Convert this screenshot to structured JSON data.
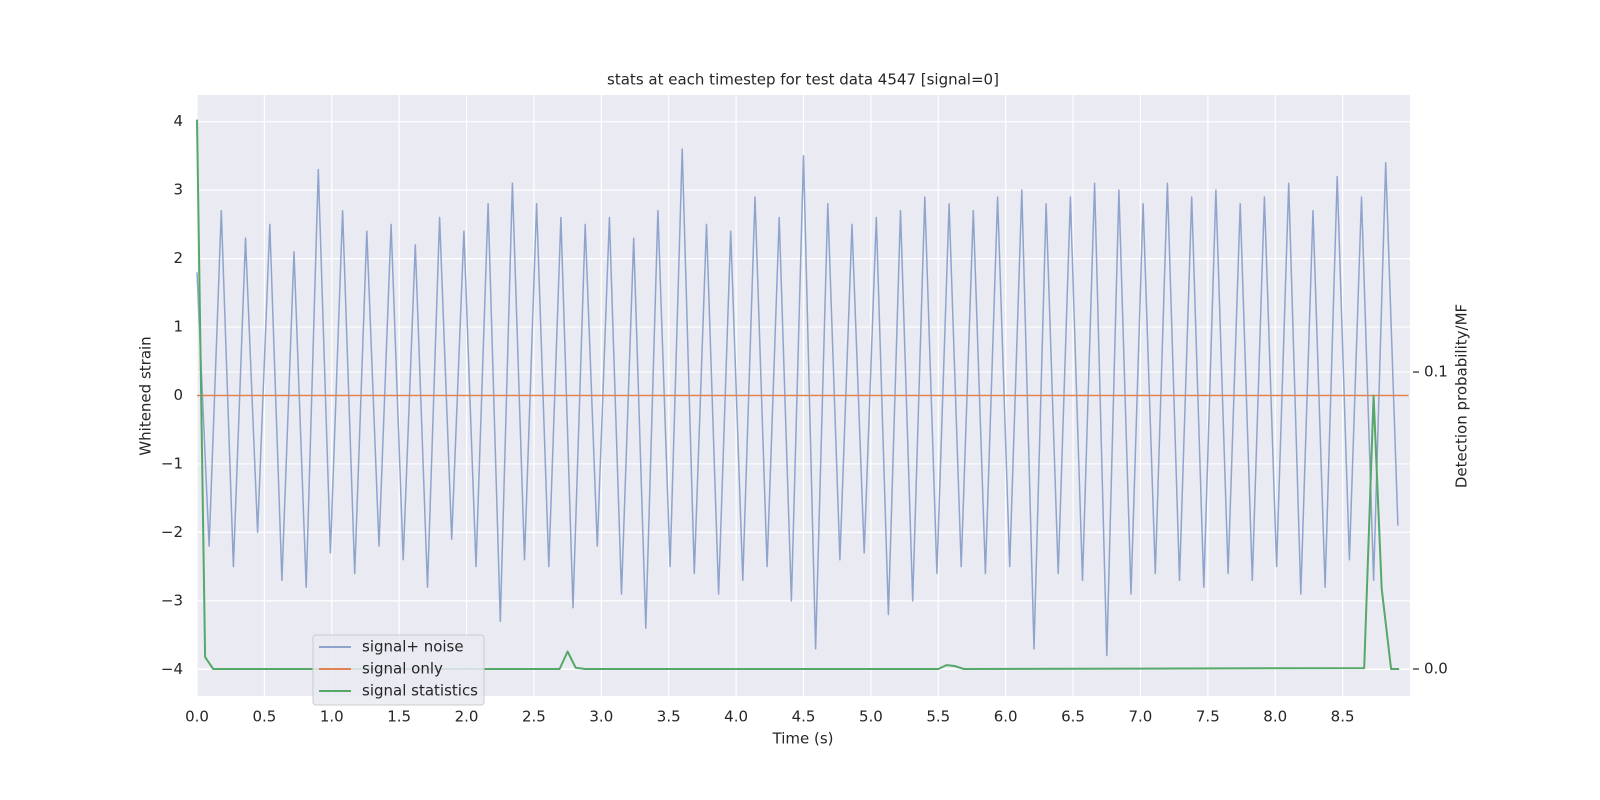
{
  "chart_data": {
    "type": "line",
    "title": "stats at each timestep for test data 4547 [signal=0]",
    "xlabel": "Time (s)",
    "ylabel": "Whitened strain",
    "y2label": "Detection probability/MF",
    "xlim": [
      0,
      9
    ],
    "ylim": [
      -4.39,
      4.39
    ],
    "y2lim": [
      -0.0091,
      0.1933
    ],
    "grid": true,
    "legend": "lower left",
    "xticks": [
      {
        "value": 0,
        "label": "0.0"
      },
      0.5,
      {
        "value": 1,
        "label": "1.0"
      },
      1.5,
      {
        "value": 2,
        "label": "2.0"
      },
      2.5,
      {
        "value": 3,
        "label": "3.0"
      },
      3.5,
      {
        "value": 4,
        "label": "4.0"
      },
      4.5,
      {
        "value": 5,
        "label": "5.0"
      },
      5.5,
      {
        "value": 6,
        "label": "6.0"
      },
      6.5,
      {
        "value": 7,
        "label": "7.0"
      },
      7.5,
      {
        "value": 8,
        "label": "8.0"
      },
      8.5
    ],
    "yticks": [
      {
        "value": -4,
        "label": "−4"
      },
      {
        "value": -3,
        "label": "−3"
      },
      {
        "value": -2,
        "label": "−2"
      },
      {
        "value": -1,
        "label": "−1"
      },
      0,
      1,
      2,
      3,
      4
    ],
    "y2ticks": [
      {
        "value": 0,
        "label": "0.0"
      },
      0.1
    ],
    "series": [
      {
        "name": "signal+ noise",
        "color": "#8fa4cc",
        "x": [
          0,
          0.09,
          0.18,
          0.27,
          0.36,
          0.45,
          0.54,
          0.63,
          0.72,
          0.81,
          0.9,
          0.99,
          1.08,
          1.17,
          1.26,
          1.35,
          1.44,
          1.53,
          1.62,
          1.71,
          1.8,
          1.89,
          1.98,
          2.07,
          2.16,
          2.25,
          2.34,
          2.43,
          2.52,
          2.61,
          2.7,
          2.79,
          2.88,
          2.97,
          3.06,
          3.15,
          3.24,
          3.33,
          3.42,
          3.51,
          3.6,
          3.69,
          3.78,
          3.87,
          3.96,
          4.05,
          4.14,
          4.23,
          4.32,
          4.41,
          4.5,
          4.59,
          4.68,
          4.77,
          4.86,
          4.95,
          5.04,
          5.13,
          5.22,
          5.31,
          5.4,
          5.49,
          5.58,
          5.67,
          5.76,
          5.85,
          5.94,
          6.03,
          6.12,
          6.21,
          6.3,
          6.39,
          6.48,
          6.57,
          6.66,
          6.75,
          6.84,
          6.93,
          7.02,
          7.11,
          7.2,
          7.29,
          7.38,
          7.47,
          7.56,
          7.65,
          7.74,
          7.83,
          7.92,
          8.01,
          8.1,
          8.19,
          8.28,
          8.37,
          8.46,
          8.55,
          8.64,
          8.73,
          8.82,
          8.91
        ],
        "values": [
          1.8,
          -2.2,
          2.7,
          -2.5,
          2.3,
          -2.0,
          2.5,
          -2.7,
          2.1,
          -2.8,
          3.3,
          -2.3,
          2.7,
          -2.6,
          2.4,
          -2.2,
          2.5,
          -2.4,
          2.2,
          -2.8,
          2.6,
          -2.1,
          2.4,
          -2.5,
          2.8,
          -3.3,
          3.1,
          -2.4,
          2.8,
          -2.5,
          2.6,
          -3.1,
          2.5,
          -2.2,
          2.6,
          -2.9,
          2.3,
          -3.4,
          2.7,
          -2.5,
          3.6,
          -2.6,
          2.5,
          -2.9,
          2.4,
          -2.7,
          2.9,
          -2.5,
          2.6,
          -3.0,
          3.5,
          -3.7,
          2.8,
          -2.4,
          2.5,
          -2.3,
          2.6,
          -3.2,
          2.7,
          -3.0,
          2.9,
          -2.6,
          2.8,
          -2.5,
          2.7,
          -2.6,
          2.9,
          -2.5,
          3.0,
          -3.7,
          2.8,
          -2.6,
          2.9,
          -2.7,
          3.1,
          -3.8,
          3.0,
          -2.9,
          2.8,
          -2.6,
          3.1,
          -2.7,
          2.9,
          -2.8,
          3.0,
          -2.6,
          2.8,
          -2.7,
          2.9,
          -2.5,
          3.1,
          -2.9,
          2.7,
          -2.8,
          3.2,
          -2.4,
          2.9,
          -2.7,
          3.4,
          -1.9
        ]
      },
      {
        "name": "signal only",
        "color": "#dd8452",
        "x": [
          0,
          8.99
        ],
        "values": [
          0,
          0
        ]
      },
      {
        "name": "signal statistics",
        "color": "#55a868",
        "axis": "y2",
        "x": [
          0,
          0.06,
          0.12,
          2.69,
          2.75,
          2.81,
          2.88,
          5.5,
          5.56,
          5.62,
          5.69,
          8.66,
          8.73,
          8.79,
          8.86,
          8.92
        ],
        "values": [
          0.185,
          0.004,
          0,
          0,
          0.0059,
          0.0004,
          0,
          0,
          0.0013,
          0.001,
          0,
          0.0003,
          0.092,
          0.027,
          0,
          0
        ]
      }
    ]
  }
}
